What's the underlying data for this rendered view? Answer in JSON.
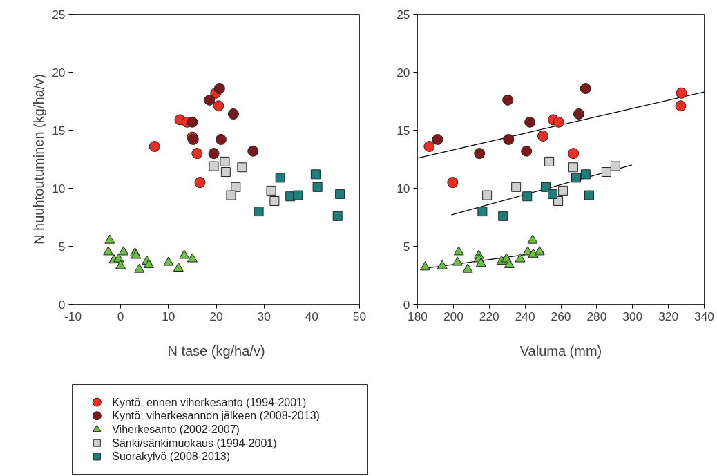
{
  "chart_data": [
    {
      "type": "scatter",
      "xlabel": "N tase (kg/ha/v)",
      "ylabel": "N huuhtoutuminen (kg/ha/v)",
      "xlim": [
        -10,
        50
      ],
      "ylim": [
        0,
        25
      ],
      "xticks": [
        -10,
        0,
        10,
        20,
        30,
        40,
        50
      ],
      "yticks": [
        0,
        5,
        10,
        15,
        20,
        25
      ],
      "grid": false,
      "legend": "bottom",
      "series": [
        {
          "name": "Kyntö, ennen viherkesanto (1994-2001)",
          "color": "#ee2e24",
          "marker": "circle",
          "x": [
            19.9,
            20.5,
            12.4,
            13.9,
            15.0,
            7.1,
            16.0,
            16.6
          ],
          "values": [
            18.2,
            17.1,
            15.9,
            15.7,
            14.4,
            13.6,
            13.0,
            10.5
          ]
        },
        {
          "name": "Kyntö, viherkesannon jälkeen (2008-2013)",
          "color": "#7b1a1c",
          "marker": "circle",
          "x": [
            20.7,
            18.6,
            23.6,
            15.0,
            15.2,
            21.0,
            19.5,
            27.7
          ],
          "values": [
            18.6,
            17.6,
            16.4,
            15.7,
            14.2,
            14.2,
            13.0,
            13.2
          ]
        },
        {
          "name": "Viherkesanto (2002-2007)",
          "color": "#6abf40",
          "marker": "triangle",
          "x": [
            -2.3,
            -2.6,
            0.6,
            -1.4,
            -0.4,
            0,
            3.0,
            3.2,
            3.9,
            5.5,
            5.9,
            10.0,
            12.1,
            13.3,
            15.0
          ],
          "values": [
            5.5,
            4.5,
            4.5,
            3.8,
            3.9,
            3.3,
            4.4,
            4.2,
            3.0,
            3.7,
            3.4,
            3.6,
            3.1,
            4.2,
            3.9
          ]
        },
        {
          "name": "Sänki/sänkimuokaus (1994-2001)",
          "color": "#d0d0d0",
          "marker": "square",
          "x": [
            19.5,
            21.8,
            22.0,
            25.4,
            24.1,
            23.1,
            31.5,
            32.2
          ],
          "values": [
            11.9,
            12.3,
            11.4,
            11.8,
            10.1,
            9.4,
            9.8,
            8.9
          ]
        },
        {
          "name": "Suorakylvö (2008-2013)",
          "color": "#217e7e",
          "marker": "square",
          "x": [
            33.4,
            28.9,
            35.5,
            37.1,
            40.8,
            41.2,
            45.9,
            45.4
          ],
          "values": [
            10.9,
            8.0,
            9.3,
            9.4,
            11.2,
            10.1,
            9.5,
            7.6
          ]
        }
      ]
    },
    {
      "type": "scatter",
      "xlabel": "Valuma (mm)",
      "xlim": [
        180,
        340
      ],
      "ylim": [
        0,
        25
      ],
      "xticks": [
        180,
        200,
        220,
        240,
        260,
        280,
        300,
        320,
        340
      ],
      "yticks": [
        0,
        5,
        10,
        15,
        20,
        25
      ],
      "grid": false,
      "series": [
        {
          "type": "line",
          "color": "#000000",
          "marker": "none",
          "x": [
            180,
            340
          ],
          "values": [
            12.6,
            18.3
          ]
        },
        {
          "type": "line",
          "color": "#000000",
          "marker": "none",
          "x": [
            198.8,
            299.6
          ],
          "values": [
            7.7,
            12.0
          ]
        },
        {
          "type": "line",
          "color": "#000000",
          "marker": "none",
          "x": [
            184.2,
            250.4
          ],
          "values": [
            3.1,
            4.5
          ]
        },
        {
          "color": "#ee2e24",
          "marker": "circle",
          "x": [
            186.5,
            199.6,
            250,
            255.8,
            258.8,
            267,
            327.3,
            326.9
          ],
          "values": [
            13.6,
            10.5,
            14.5,
            15.9,
            15.7,
            13.0,
            18.2,
            17.1
          ]
        },
        {
          "color": "#7b1a1c",
          "marker": "circle",
          "x": [
            191.2,
            214.6,
            230.4,
            230.8,
            242.7,
            240.8,
            270,
            273.8
          ],
          "values": [
            14.2,
            13.0,
            17.6,
            14.2,
            15.7,
            13.2,
            16.4,
            18.6
          ]
        },
        {
          "color": "#6abf40",
          "marker": "triangle",
          "x": [
            184.2,
            193.8,
            203,
            202.3,
            208,
            214.2,
            214.2,
            215.4,
            226.9,
            229.6,
            231.2,
            237.3,
            241.5,
            244.6,
            244.2,
            248.1
          ],
          "values": [
            3.2,
            3.3,
            4.5,
            3.6,
            3.0,
            4.2,
            3.9,
            3.5,
            3.7,
            3.9,
            3.4,
            3.9,
            4.5,
            4.3,
            5.5,
            4.5
          ]
        },
        {
          "color": "#d0d0d0",
          "marker": "square",
          "x": [
            218.8,
            235,
            253.5,
            266.9,
            261.2,
            258.5,
            285.4,
            290.4
          ],
          "values": [
            9.4,
            10.1,
            12.3,
            11.8,
            9.8,
            8.9,
            11.4,
            11.9
          ]
        },
        {
          "color": "#217e7e",
          "marker": "square",
          "x": [
            216.2,
            227.7,
            241.2,
            251.5,
            255.4,
            268.5,
            273.8,
            275.8
          ],
          "values": [
            8.0,
            7.6,
            9.3,
            10.1,
            9.5,
            10.9,
            11.2,
            9.4
          ]
        }
      ]
    }
  ]
}
